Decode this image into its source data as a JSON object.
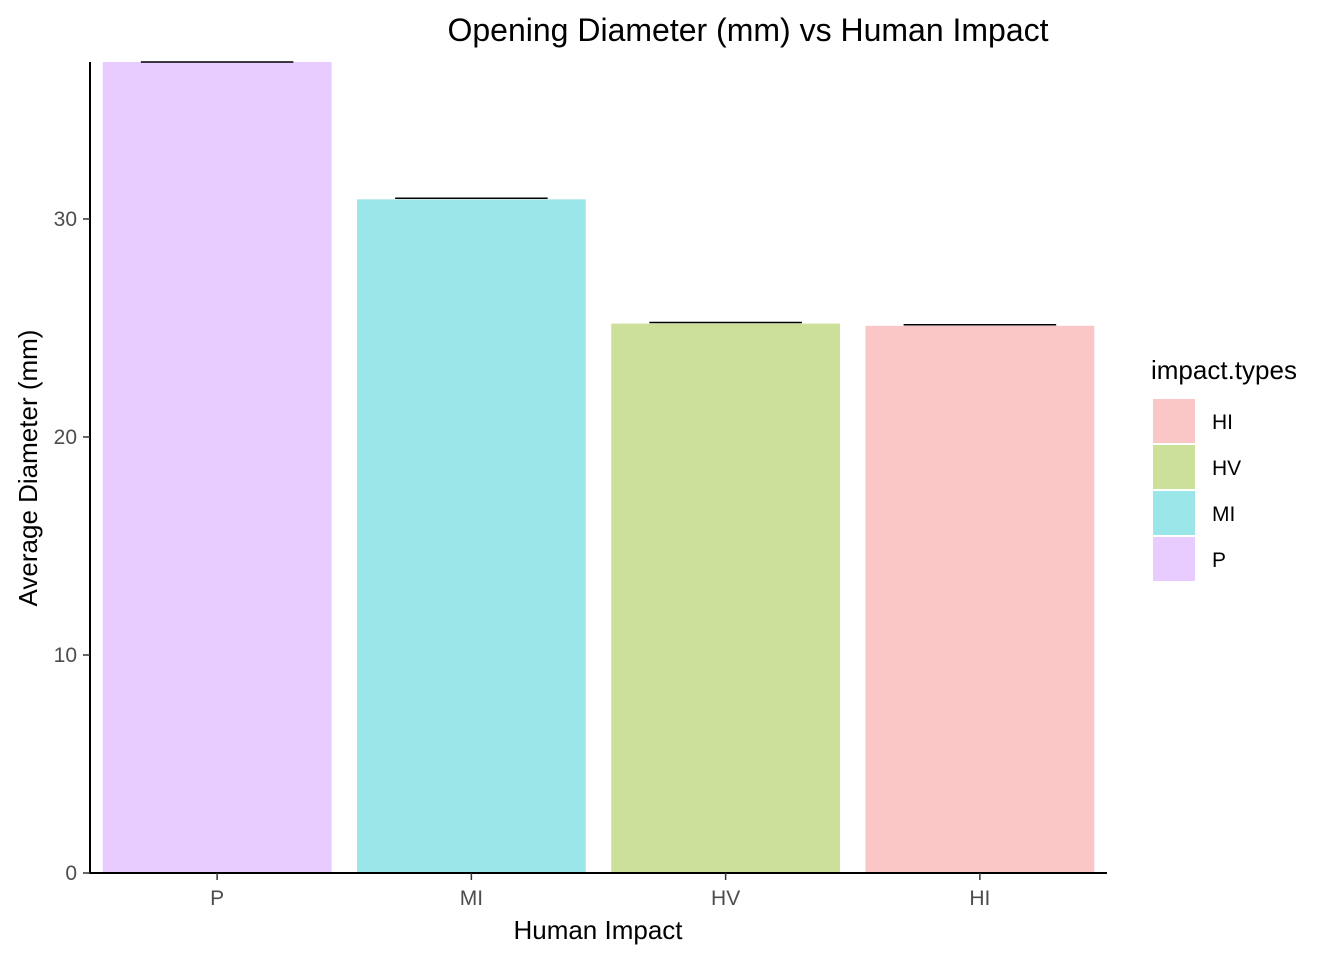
{
  "chart_data": {
    "type": "bar",
    "title": "Opening Diameter (mm) vs Human Impact",
    "xlabel": "Human Impact",
    "ylabel": "Average Diameter (mm)",
    "categories": [
      "P",
      "MI",
      "HV",
      "HI"
    ],
    "values": [
      37.2,
      30.9,
      25.2,
      25.1
    ],
    "error_bar_upper": [
      37.2,
      30.95,
      25.25,
      25.15
    ],
    "colors": [
      "#e8cbff",
      "#9be6e8",
      "#cde09a",
      "#fac7c6"
    ],
    "ylim": [
      0,
      37.2
    ],
    "yticks": [
      0,
      10,
      20,
      30
    ],
    "grid": false,
    "legend": {
      "title": "impact.types",
      "position": "right",
      "items": [
        {
          "label": "HI",
          "color": "#fac7c6"
        },
        {
          "label": "HV",
          "color": "#cde09a"
        },
        {
          "label": "MI",
          "color": "#9be6e8"
        },
        {
          "label": "P",
          "color": "#e8cbff"
        }
      ]
    }
  }
}
